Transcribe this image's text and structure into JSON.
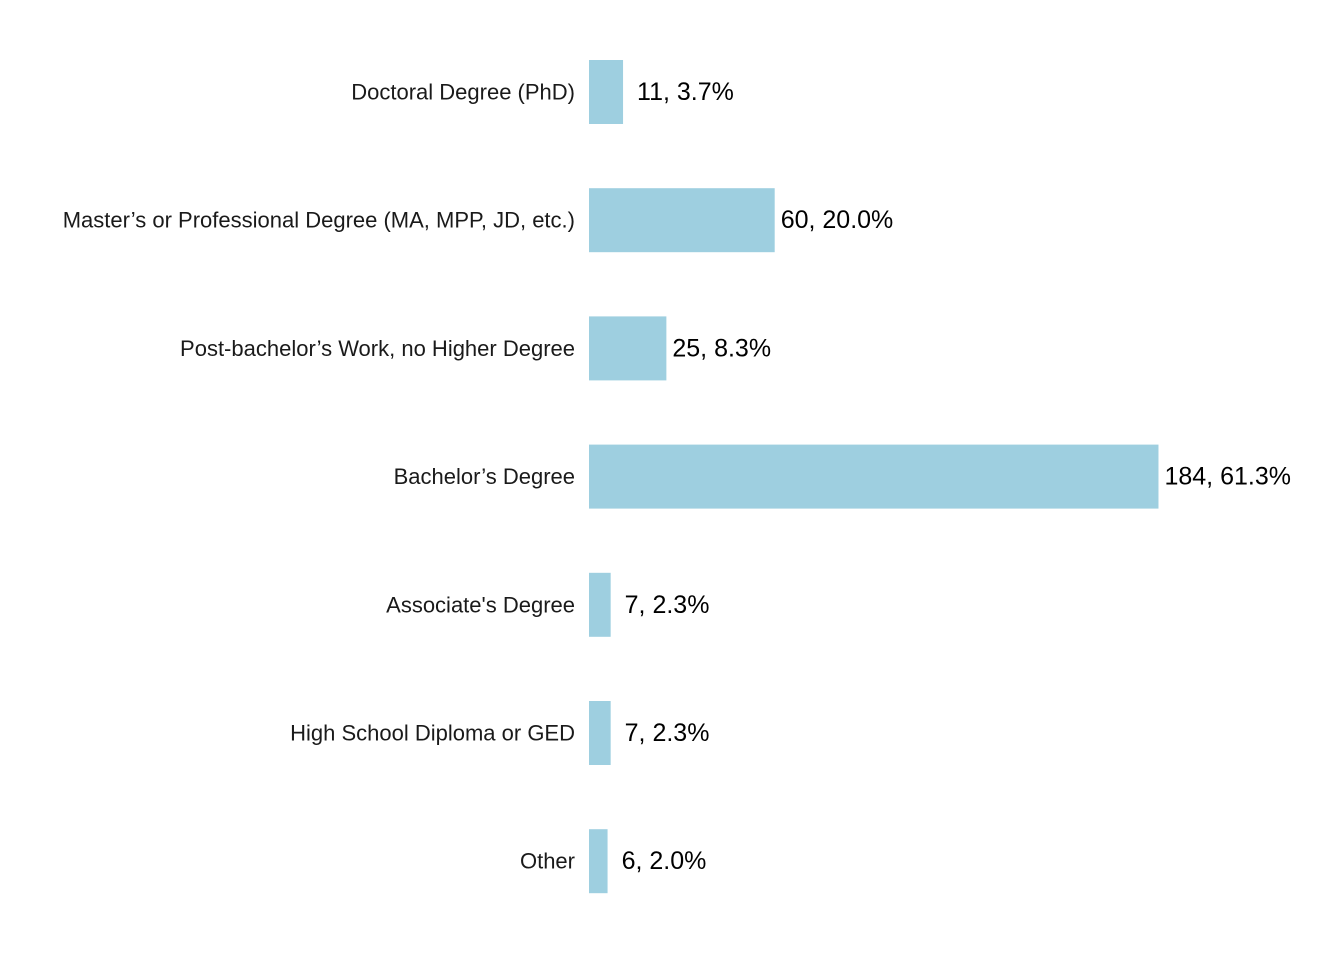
{
  "chart_data": {
    "type": "bar",
    "orientation": "horizontal",
    "title": "",
    "xlabel": "",
    "ylabel": "",
    "grid": false,
    "legend": "none",
    "xlim": [
      0,
      184
    ],
    "bar_color": "#9ecfe0",
    "categories": [
      "Doctoral Degree (PhD)",
      "Master’s or Professional Degree (MA, MPP, JD, etc.)",
      "Post-bachelor’s Work, no Higher Degree",
      "Bachelor’s Degree",
      "Associate's Degree",
      "High School Diploma or GED",
      "Other"
    ],
    "values": [
      11,
      60,
      25,
      184,
      7,
      7,
      6
    ],
    "data_labels": [
      "11, 3.7%",
      "60, 20.0%",
      "25, 8.3%",
      "184, 61.3%",
      "7, 2.3%",
      "7, 2.3%",
      "6, 2.0%"
    ]
  }
}
